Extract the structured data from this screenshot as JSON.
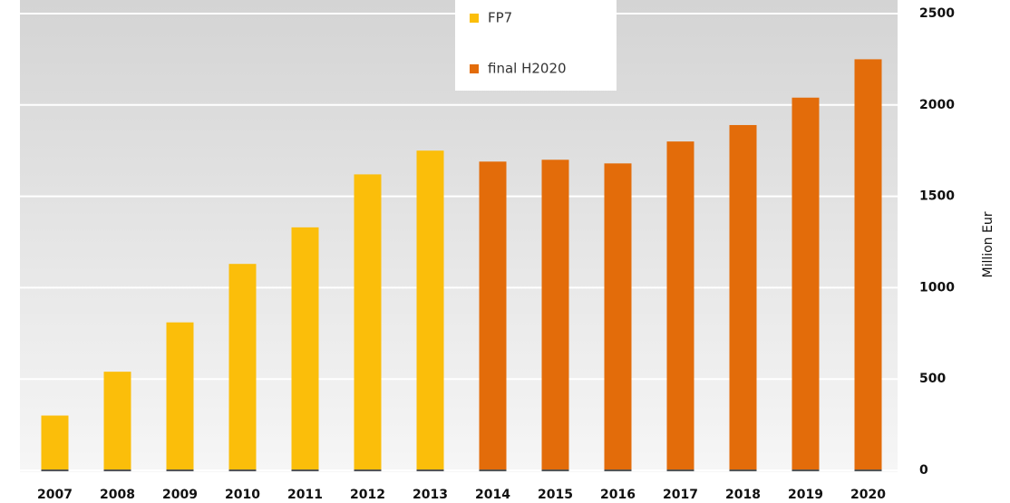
{
  "chart_data": {
    "type": "bar",
    "categories": [
      "2007",
      "2008",
      "2009",
      "2010",
      "2011",
      "2012",
      "2013",
      "2014",
      "2015",
      "2016",
      "2017",
      "2018",
      "2019",
      "2020"
    ],
    "series": [
      {
        "name": "FP7",
        "color": "#fbbe0a",
        "values": [
          300,
          540,
          810,
          1130,
          1330,
          1620,
          1750,
          null,
          null,
          null,
          null,
          null,
          null,
          null
        ]
      },
      {
        "name": "final H2020",
        "color": "#e36c0a",
        "values": [
          null,
          null,
          null,
          null,
          null,
          null,
          null,
          1690,
          1700,
          1680,
          1800,
          1890,
          2040,
          2250
        ]
      }
    ],
    "y_label": "Million Eur",
    "ylim": [
      0,
      2500
    ],
    "yticks": [
      0,
      500,
      1000,
      1500,
      2000,
      2500
    ],
    "grid": true,
    "legend": "top"
  }
}
